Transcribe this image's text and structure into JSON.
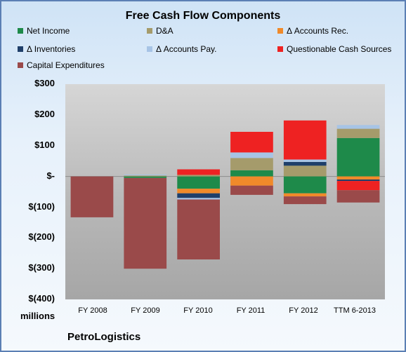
{
  "chart_data": {
    "type": "bar",
    "stacked": true,
    "title": "Free Cash Flow Components",
    "categories": [
      "FY 2008",
      "FY 2009",
      "FY 2010",
      "FY 2011",
      "FY 2012",
      "TTM 6-2013"
    ],
    "y_ticks": [
      "$300",
      "$200",
      "$100",
      "$-",
      "$(100)",
      "$(200)",
      "$(300)",
      "$(400)"
    ],
    "ylim": [
      -400,
      300
    ],
    "grid": false,
    "legend_position": "top",
    "series": [
      {
        "name": "Net Income",
        "color": "#1e8a4a",
        "values": [
          0,
          -5,
          -40,
          20,
          -55,
          125
        ]
      },
      {
        "name": "D&A",
        "color": "#a59b6b",
        "values": [
          0,
          3,
          5,
          40,
          35,
          30
        ]
      },
      {
        "name": "Δ Accounts Rec.",
        "color": "#f08a2a",
        "values": [
          0,
          0,
          -15,
          -30,
          -10,
          -10
        ]
      },
      {
        "name": "Δ Inventories",
        "color": "#1f3f6a",
        "values": [
          0,
          0,
          -15,
          0,
          12,
          -5
        ]
      },
      {
        "name": "Δ Accounts Pay.",
        "color": "#a7c4e6",
        "values": [
          0,
          3,
          -5,
          18,
          8,
          12
        ]
      },
      {
        "name": "Questionable Cash Sources",
        "color": "#ee2222",
        "values": [
          0,
          0,
          18,
          67,
          127,
          -30
        ]
      },
      {
        "name": "Capital Expenditures",
        "color": "#9a4a4a",
        "values": [
          -133,
          -295,
          -195,
          -30,
          -25,
          -40
        ]
      }
    ]
  },
  "units_label": "millions",
  "company": "PetroLogistics"
}
